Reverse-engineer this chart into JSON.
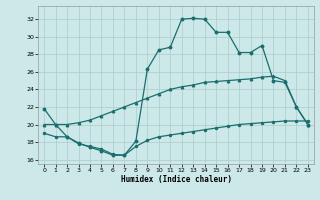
{
  "xlabel": "Humidex (Indice chaleur)",
  "xlim": [
    -0.5,
    23.5
  ],
  "ylim": [
    15.5,
    33.5
  ],
  "yticks": [
    16,
    18,
    20,
    22,
    24,
    26,
    28,
    30,
    32
  ],
  "xticks": [
    0,
    1,
    2,
    3,
    4,
    5,
    6,
    7,
    8,
    9,
    10,
    11,
    12,
    13,
    14,
    15,
    16,
    17,
    18,
    19,
    20,
    21,
    22,
    23
  ],
  "bg_color": "#cce8e8",
  "grid_color": "#aacccc",
  "line_color": "#1a6e6e",
  "line1_x": [
    0,
    1,
    2,
    3,
    4,
    5,
    6,
    7,
    8,
    9,
    10,
    11,
    12,
    13,
    14,
    15,
    16,
    17,
    18,
    19,
    20,
    21,
    22,
    23
  ],
  "line1_y": [
    21.8,
    20.0,
    18.6,
    17.9,
    17.4,
    17.0,
    16.5,
    16.5,
    18.1,
    26.3,
    28.5,
    28.8,
    32.0,
    32.1,
    32.0,
    30.5,
    30.5,
    28.2,
    28.2,
    29.0,
    25.0,
    24.8,
    22.0,
    20.0
  ],
  "line2_x": [
    0,
    1,
    2,
    3,
    4,
    5,
    6,
    7,
    8,
    9,
    10,
    11,
    12,
    13,
    14,
    15,
    16,
    17,
    18,
    19,
    20,
    21,
    22,
    23
  ],
  "line2_y": [
    20.0,
    20.0,
    20.0,
    20.2,
    20.5,
    21.0,
    21.5,
    22.0,
    22.5,
    23.0,
    23.5,
    24.0,
    24.3,
    24.5,
    24.8,
    24.9,
    25.0,
    25.1,
    25.2,
    25.4,
    25.5,
    25.0,
    22.0,
    20.0
  ],
  "line3_x": [
    0,
    1,
    2,
    3,
    4,
    5,
    6,
    7,
    8,
    9,
    10,
    11,
    12,
    13,
    14,
    15,
    16,
    17,
    18,
    19,
    20,
    21,
    22,
    23
  ],
  "line3_y": [
    19.0,
    18.6,
    18.6,
    17.8,
    17.5,
    17.2,
    16.6,
    16.5,
    17.5,
    18.2,
    18.6,
    18.8,
    19.0,
    19.2,
    19.4,
    19.6,
    19.8,
    20.0,
    20.1,
    20.2,
    20.3,
    20.4,
    20.4,
    20.4
  ]
}
